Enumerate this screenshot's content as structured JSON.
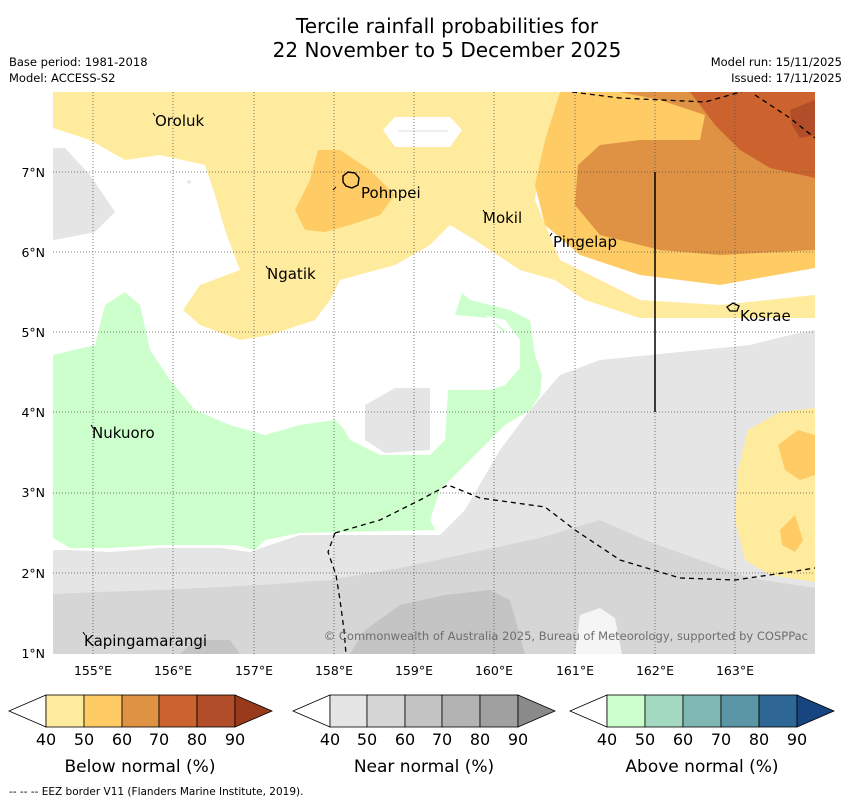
{
  "title": {
    "line1": "Tercile rainfall probabilities for",
    "line2": "22 November to 5 December 2025"
  },
  "info_left": {
    "base_period": "Base period: 1981-2018",
    "model": "Model: ACCESS-S2"
  },
  "info_right": {
    "model_run": "Model run: 15/11/2025",
    "issued": "Issued: 17/11/2025"
  },
  "map": {
    "lat_labels": [
      "1°N",
      "2°N",
      "3°N",
      "4°N",
      "5°N",
      "6°N",
      "7°N"
    ],
    "lon_labels": [
      "155°E",
      "156°E",
      "157°E",
      "158°E",
      "159°E",
      "160°E",
      "161°E",
      "162°E",
      "163°E"
    ],
    "places": [
      "Oroluk",
      "Pohnpei",
      "Mokil",
      "Pingelap",
      "Ngatik",
      "Kosrae",
      "Nukuoro",
      "Kapingamarangi"
    ],
    "copyright": "© Commonwealth of Australia 2025, Bureau of Meteorology, supported by COSPPac"
  },
  "legends": {
    "ticks": [
      "40",
      "50",
      "60",
      "70",
      "80",
      "90"
    ],
    "below": {
      "label": "Below normal (%)",
      "colors": [
        "#ffffff",
        "#ffeb9e",
        "#fecb65",
        "#df9244",
        "#cc632f",
        "#b14d28",
        "#9a3a1c"
      ]
    },
    "near": {
      "label": "Near normal (%)",
      "colors": [
        "#ffffff",
        "#e5e5e5",
        "#d6d6d6",
        "#c4c4c4",
        "#b3b3b3",
        "#a0a0a0",
        "#8a8a8a"
      ]
    },
    "above": {
      "label": "Above normal (%)",
      "colors": [
        "#ffffff",
        "#ccffcc",
        "#a2d9c0",
        "#7fb7b3",
        "#5a96a5",
        "#2e6796",
        "#17457f"
      ]
    }
  },
  "footer": "--  --  -- EEZ border V11 (Flanders Marine Institute, 2019)."
}
